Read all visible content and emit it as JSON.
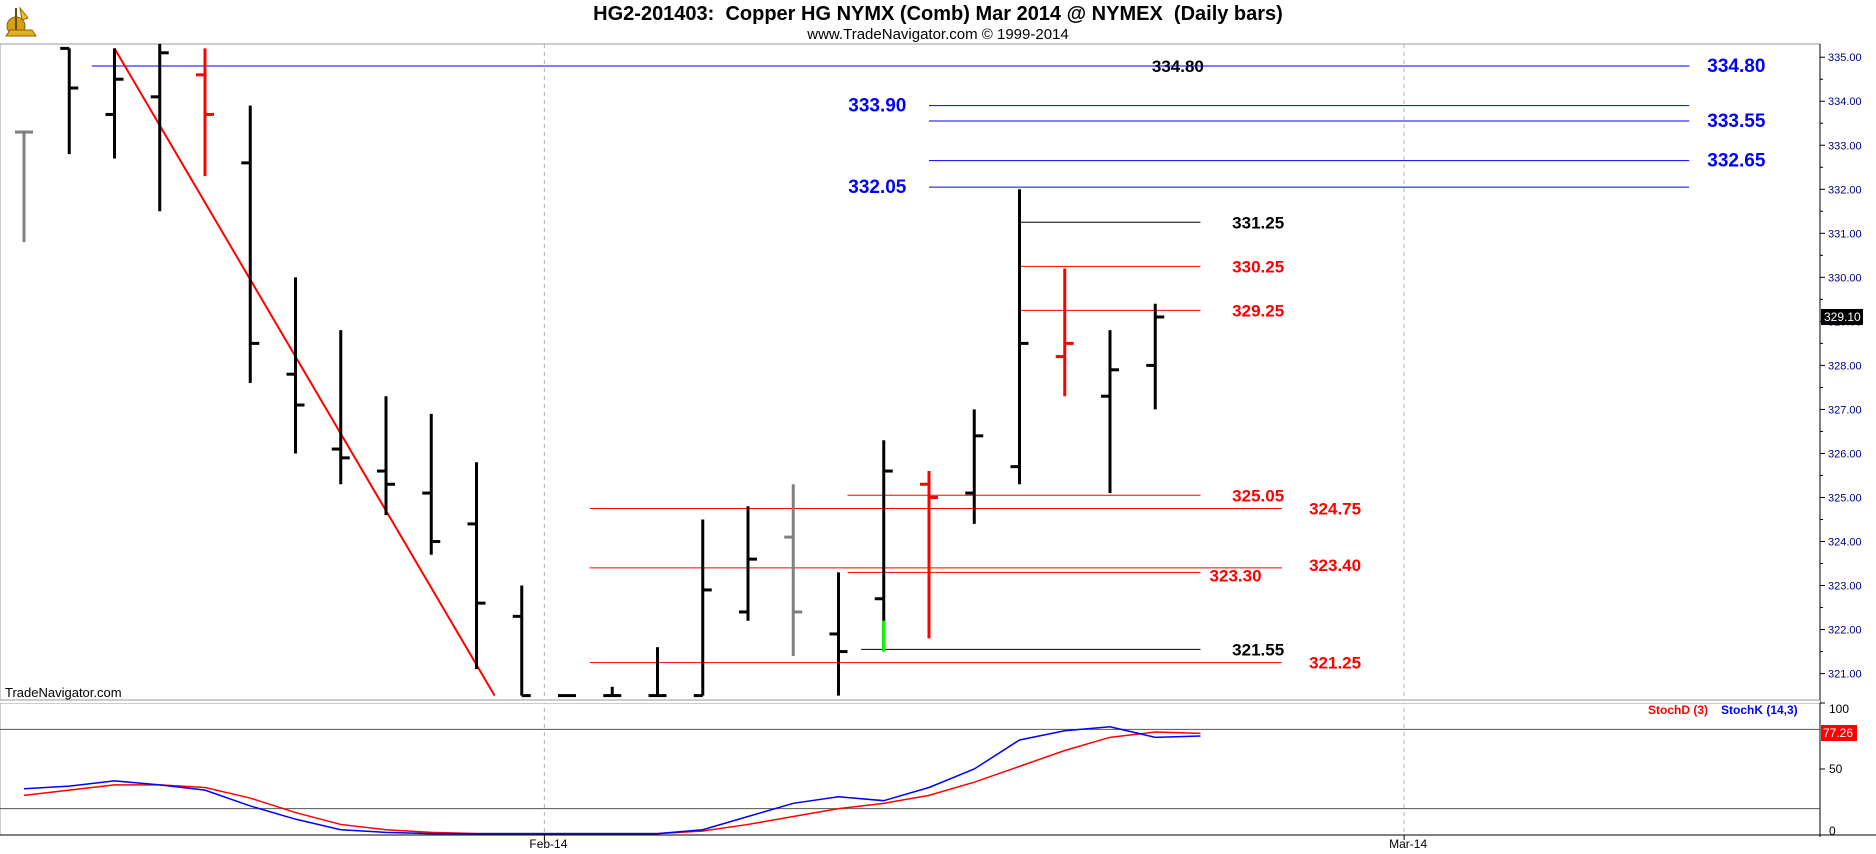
{
  "header": {
    "title": "HG2-201403:  Copper HG NYMX (Comb) Mar 2014 @ NYMEX  (Daily bars)",
    "subtitle": "www.TradeNavigator.com © 1999-2014"
  },
  "watermark": "TradeNavigator.com",
  "colors": {
    "bar": "#000000",
    "bar_gray": "#808080",
    "bar_red": "#ff0000",
    "bar_green": "#00ff00",
    "level_blue": "#0000ff",
    "level_red": "#ff0000",
    "trendline": "#ff0000",
    "stochd": "#ff0000",
    "stochk": "#0000ff",
    "axis_text": "#000080"
  },
  "chart_data": [
    {
      "type": "ohlc",
      "ylim": [
        320.4,
        335.3
      ],
      "price_ticks": [
        "335.00",
        "334.00",
        "333.00",
        "332.00",
        "331.00",
        "330.00",
        "329.00",
        "328.00",
        "327.00",
        "326.00",
        "325.00",
        "324.00",
        "323.00",
        "322.00",
        "321.00"
      ],
      "x_ticks": [
        {
          "label": "Feb-14",
          "bar": 11.5
        },
        {
          "label": "Mar-14",
          "bar": 30.5
        }
      ],
      "last_price": "329.10",
      "bars": [
        {
          "o": 333.3,
          "h": 333.3,
          "l": 330.8,
          "c": 333.3,
          "color": "gray"
        },
        {
          "o": 335.2,
          "h": 335.2,
          "l": 332.8,
          "c": 334.3,
          "color": "black"
        },
        {
          "o": 333.7,
          "h": 335.2,
          "l": 332.7,
          "c": 334.5,
          "color": "black"
        },
        {
          "o": 334.1,
          "h": 335.3,
          "l": 331.5,
          "c": 335.1,
          "color": "black"
        },
        {
          "o": 334.6,
          "h": 335.2,
          "l": 332.3,
          "c": 333.7,
          "color": "red"
        },
        {
          "o": 332.6,
          "h": 333.9,
          "l": 327.6,
          "c": 328.5,
          "color": "black"
        },
        {
          "o": 327.8,
          "h": 330.0,
          "l": 326.0,
          "c": 327.1,
          "color": "black"
        },
        {
          "o": 326.1,
          "h": 328.8,
          "l": 325.3,
          "c": 325.9,
          "color": "black"
        },
        {
          "o": 325.6,
          "h": 327.3,
          "l": 324.6,
          "c": 325.3,
          "color": "black"
        },
        {
          "o": 325.1,
          "h": 326.9,
          "l": 323.7,
          "c": 324.0,
          "color": "black"
        },
        {
          "o": 324.4,
          "h": 325.8,
          "l": 321.1,
          "c": 322.6,
          "color": "black"
        },
        {
          "o": 322.3,
          "h": 323.0,
          "l": 320.5,
          "c": 320.5,
          "color": "black"
        },
        {
          "o": 320.5,
          "h": 320.5,
          "l": 320.5,
          "c": 320.5,
          "color": "black"
        },
        {
          "o": 320.5,
          "h": 320.7,
          "l": 320.5,
          "c": 320.5,
          "color": "black"
        },
        {
          "o": 320.5,
          "h": 321.6,
          "l": 320.5,
          "c": 320.5,
          "color": "black"
        },
        {
          "o": 320.5,
          "h": 324.5,
          "l": 320.5,
          "c": 322.9,
          "color": "black"
        },
        {
          "o": 322.4,
          "h": 324.8,
          "l": 322.2,
          "c": 323.6,
          "color": "black"
        },
        {
          "o": 324.1,
          "h": 325.3,
          "l": 321.4,
          "c": 322.4,
          "color": "gray"
        },
        {
          "o": 321.9,
          "h": 323.3,
          "l": 320.5,
          "c": 321.5,
          "color": "black"
        },
        {
          "o": 322.7,
          "h": 326.3,
          "l": 321.5,
          "c": 325.6,
          "color": "black",
          "green_low": [
            321.5,
            322.2
          ]
        },
        {
          "o": 325.3,
          "h": 325.6,
          "l": 321.8,
          "c": 325.0,
          "color": "red"
        },
        {
          "o": 325.1,
          "h": 327.0,
          "l": 324.4,
          "c": 326.4,
          "color": "black"
        },
        {
          "o": 325.7,
          "h": 332.0,
          "l": 325.3,
          "c": 328.5,
          "color": "black"
        },
        {
          "o": 328.2,
          "h": 330.2,
          "l": 327.3,
          "c": 328.5,
          "color": "red"
        },
        {
          "o": 327.3,
          "h": 328.8,
          "l": 325.1,
          "c": 327.9,
          "color": "black"
        },
        {
          "o": 328.0,
          "h": 329.4,
          "l": 327.0,
          "c": 329.1,
          "color": "black"
        }
      ],
      "trendline": {
        "from": {
          "bar": 2,
          "price": 335.2
        },
        "to": {
          "bar": 10.4,
          "price": 320.5
        }
      },
      "levels": [
        {
          "price": 334.8,
          "label": "334.80",
          "color": "black",
          "x1": 1.5,
          "x2": 36.8,
          "label_bar": 25.5,
          "label_anchor": "middle",
          "label_dy": 0
        },
        {
          "price": 334.8,
          "label": "334.80",
          "color": "blue",
          "x1": 1.5,
          "x2": 36.8,
          "label_bar": 37.2,
          "label_anchor": "start",
          "label_dy": 0
        },
        {
          "price": 333.9,
          "label": "333.90",
          "color": "blue",
          "x1": 20,
          "x2": 36.8,
          "label_bar": 19.5,
          "label_anchor": "end",
          "label_dy": 0
        },
        {
          "price": 333.55,
          "label": "333.55",
          "color": "blue",
          "x1": 20,
          "x2": 36.8,
          "label_bar": 37.2,
          "label_anchor": "start",
          "label_dy": 0
        },
        {
          "price": 332.65,
          "label": "332.65",
          "color": "blue",
          "x1": 20,
          "x2": 36.8,
          "label_bar": 37.2,
          "label_anchor": "start",
          "label_dy": 0
        },
        {
          "price": 332.05,
          "label": "332.05",
          "color": "blue",
          "x1": 20,
          "x2": 36.8,
          "label_bar": 19.5,
          "label_anchor": "end",
          "label_dy": 0
        },
        {
          "price": 331.25,
          "label": "331.25",
          "color": "black",
          "x1": 22,
          "x2": 26,
          "label_bar": 26.7,
          "label_anchor": "start",
          "label_dy": 0
        },
        {
          "price": 330.25,
          "label": "330.25",
          "color": "red",
          "x1": 22,
          "x2": 26,
          "label_bar": 26.7,
          "label_anchor": "start",
          "label_dy": 0
        },
        {
          "price": 329.25,
          "label": "329.25",
          "color": "red",
          "x1": 22,
          "x2": 26,
          "label_bar": 26.7,
          "label_anchor": "start",
          "label_dy": 0
        },
        {
          "price": 325.05,
          "label": "325.05",
          "color": "red",
          "x1": 18.2,
          "x2": 26,
          "label_bar": 26.7,
          "label_anchor": "start",
          "label_dy": 0
        },
        {
          "price": 324.75,
          "label": "324.75",
          "color": "red",
          "x1": 12.5,
          "x2": 27.8,
          "label_bar": 28.4,
          "label_anchor": "start",
          "label_dy": 0
        },
        {
          "price": 323.4,
          "label": "323.40",
          "color": "red",
          "x1": 12.5,
          "x2": 27.8,
          "label_bar": 28.4,
          "label_anchor": "start",
          "label_dy": -3
        },
        {
          "price": 323.3,
          "label": "323.30",
          "color": "red",
          "x1": 18.2,
          "x2": 26,
          "label_bar": 26.2,
          "label_anchor": "start",
          "label_dy": 3
        },
        {
          "price": 321.55,
          "label": "321.55",
          "color": "black",
          "x1": 18.5,
          "x2": 26,
          "label_bar": 26.7,
          "label_anchor": "start",
          "label_dy": 0
        },
        {
          "price": 321.25,
          "label": "321.25",
          "color": "red",
          "x1": 12.5,
          "x2": 27.8,
          "label_bar": 28.4,
          "label_anchor": "start",
          "label_dy": 0
        }
      ]
    },
    {
      "type": "line",
      "ylim": [
        0,
        100
      ],
      "ticks": [
        "100",
        "50",
        "0"
      ],
      "ref_lines": [
        80,
        20
      ],
      "last_value": "77.26",
      "legend": [
        {
          "name": "StochD (3)",
          "color": "red"
        },
        {
          "name": "StochK (14,3)",
          "color": "blue"
        }
      ],
      "series": [
        {
          "key": "stochd",
          "values": [
            30,
            34,
            38,
            38,
            36,
            28,
            17,
            8,
            4,
            2,
            1,
            1,
            1,
            1,
            1,
            3,
            8,
            14,
            20,
            24,
            30,
            40,
            52,
            64,
            74,
            78,
            77
          ]
        },
        {
          "key": "stochk",
          "values": [
            35,
            37,
            41,
            38,
            34,
            22,
            12,
            4,
            2,
            1,
            1,
            1,
            1,
            1,
            1,
            4,
            14,
            24,
            29,
            26,
            36,
            50,
            72,
            79,
            82,
            74,
            75
          ]
        }
      ]
    }
  ]
}
